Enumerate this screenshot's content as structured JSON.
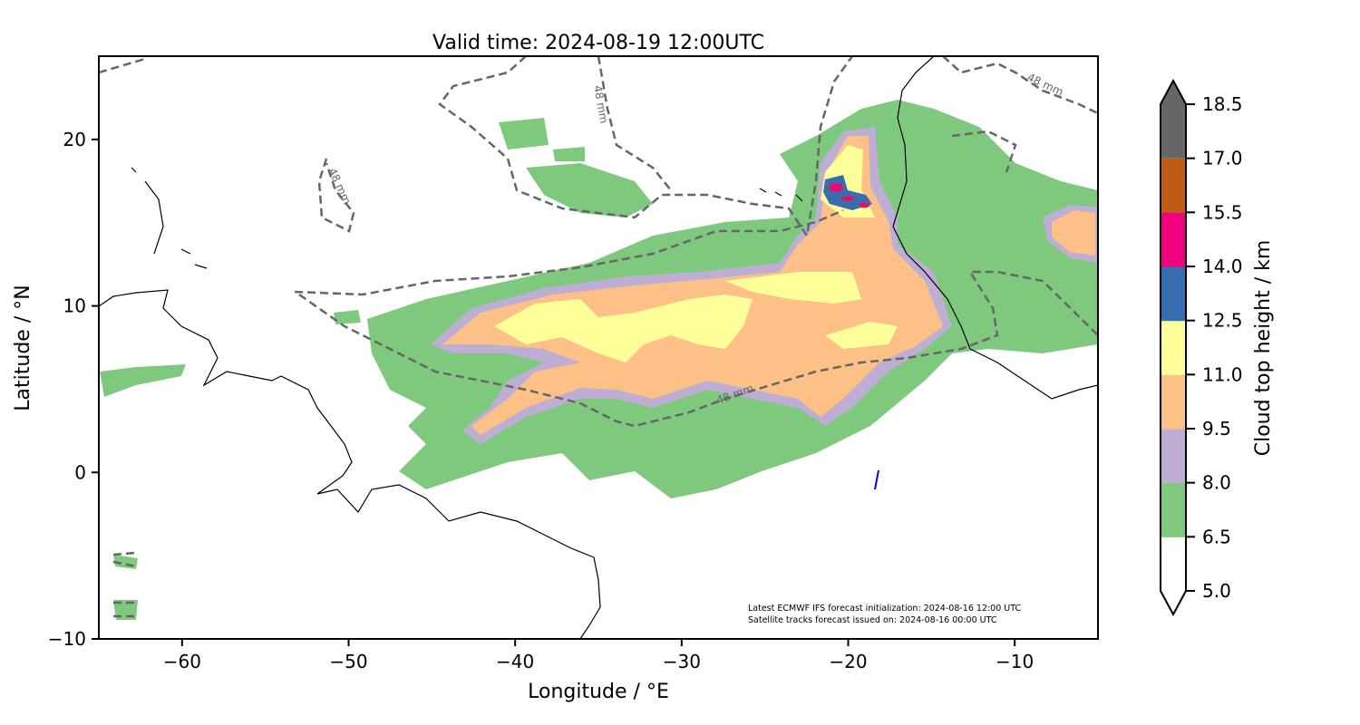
{
  "chart_data": {
    "type": "map",
    "title": "Valid time: 2024-08-19 12:00UTC",
    "xlabel": "Longitude / °E",
    "ylabel": "Latitude / °N",
    "xlim": [
      -65,
      -5
    ],
    "ylim": [
      -10,
      25
    ],
    "xticks": [
      -60,
      -50,
      -40,
      -30,
      -20,
      -10
    ],
    "xtick_labels": [
      "−60",
      "−50",
      "−40",
      "−30",
      "−20",
      "−10"
    ],
    "yticks": [
      -10,
      0,
      10,
      20
    ],
    "ytick_labels": [
      "−10",
      "0",
      "10",
      "20"
    ],
    "contour_label": "48 mm",
    "contour_labels": [
      "48 mm",
      "48 mm",
      "48 mm",
      "48 mm"
    ],
    "annotations": [
      "Latest ECMWF IFS forecast initialization: 2024-08-16 12:00 UTC",
      "Satellite tracks forecast issued on: 2024-08-16 00:00 UTC"
    ],
    "colorbar": {
      "label": "Cloud top height / km",
      "levels": [
        5.0,
        6.5,
        8.0,
        9.5,
        11.0,
        12.5,
        14.0,
        15.5,
        17.0,
        18.5
      ],
      "level_labels": [
        "5.0",
        "6.5",
        "8.0",
        "9.5",
        "11.0",
        "12.5",
        "14.0",
        "15.5",
        "17.0",
        "18.5"
      ],
      "colors": [
        "#ffffff",
        "#7fc97f",
        "#beaed4",
        "#fdc086",
        "#ffff99",
        "#386cb0",
        "#f0027f",
        "#bf5b17",
        "#666666"
      ],
      "extend": "both"
    }
  }
}
